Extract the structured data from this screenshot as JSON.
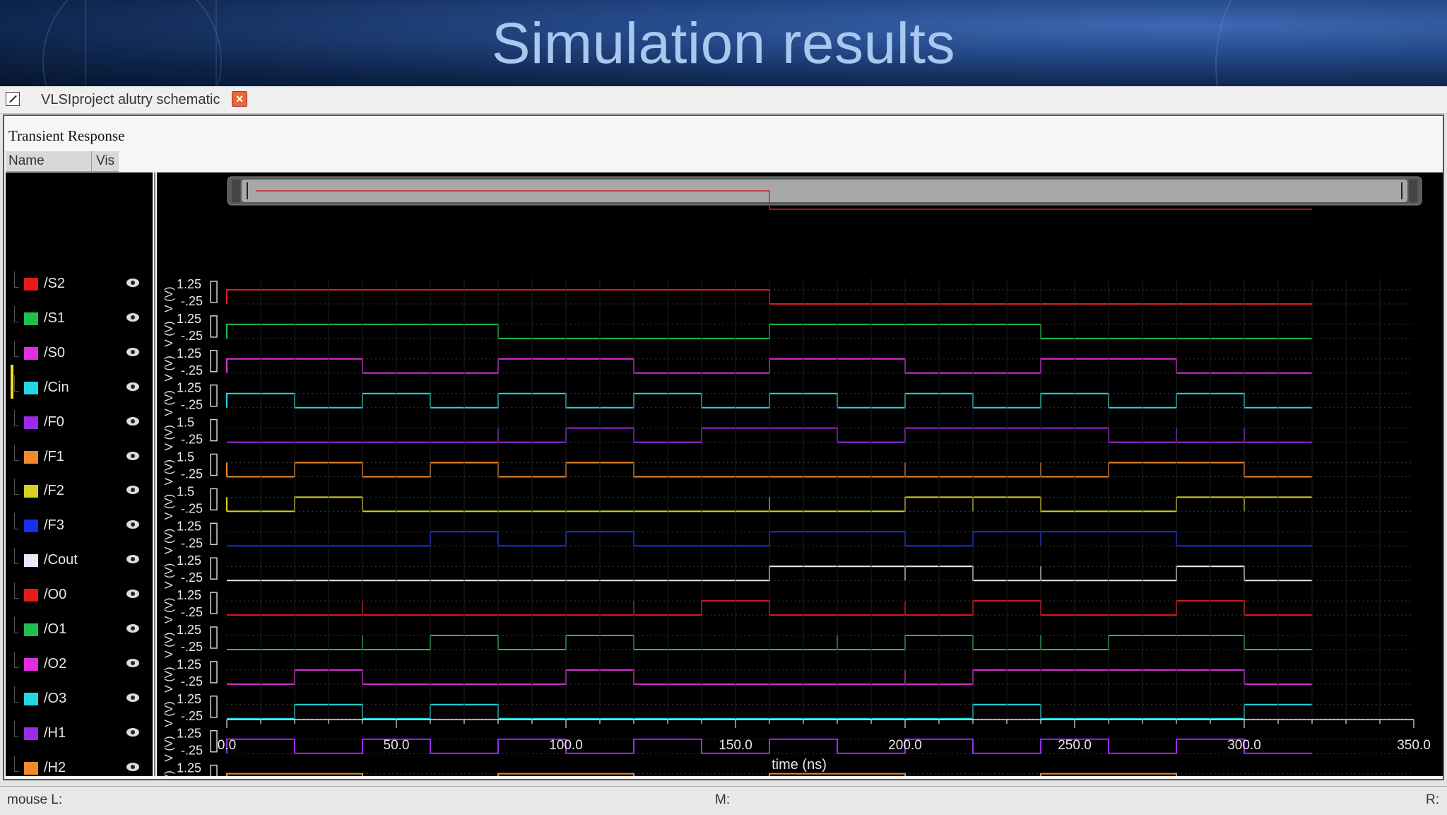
{
  "slide": {
    "title": "Simulation results"
  },
  "tab": {
    "label": "VLSIproject alutry schematic",
    "close_symbol": "×",
    "icon": "schematic-icon"
  },
  "panel": {
    "title": "Transient Response",
    "name_header": "Name",
    "vis_header": "Vis"
  },
  "status": {
    "left": "mouse L:",
    "middle": "M:",
    "right": "R:"
  },
  "chart_data": {
    "type": "line",
    "xlabel": "time (ns)",
    "x_ticks": [
      "0.0",
      "50.0",
      "100.0",
      "150.0",
      "200.0",
      "250.0",
      "300.0",
      "350.0"
    ],
    "xlim": [
      0,
      350
    ],
    "series": [
      {
        "name": "/S2",
        "color": "#e41a1a",
        "y_top": "1.25",
        "y_bot": "-.25",
        "y_unit": "V (V)",
        "edges": [
          0,
          160
        ],
        "init": 1,
        "glitches": []
      },
      {
        "name": "/S1",
        "color": "#1fbf4f",
        "y_top": "1.25",
        "y_bot": "-.25",
        "y_unit": "V (V)",
        "edges": [
          0,
          80,
          160,
          240
        ],
        "init": 1,
        "glitches": []
      },
      {
        "name": "/S0",
        "color": "#e02ee0",
        "y_top": "1.25",
        "y_bot": "-.25",
        "y_unit": "V (V)",
        "edges": [
          0,
          40,
          80,
          120,
          160,
          200,
          240,
          280
        ],
        "init": 1,
        "glitches": []
      },
      {
        "name": "/Cin",
        "color": "#22d8e0",
        "y_top": "1.25",
        "y_bot": "-.25",
        "y_unit": "V (V)",
        "edges": [
          0,
          20,
          40,
          60,
          80,
          100,
          120,
          140,
          160,
          180,
          200,
          220,
          240,
          260,
          280,
          300
        ],
        "init": 1,
        "glitches": []
      },
      {
        "name": "/F0",
        "color": "#9b2be8",
        "y_top": "1.5",
        "y_bot": "-.25",
        "y_unit": "V (V)",
        "edges": [
          100,
          120,
          140,
          180,
          200,
          260
        ],
        "init": 0,
        "glitches": [
          80,
          280,
          300
        ]
      },
      {
        "name": "/F1",
        "color": "#f08a2a",
        "y_top": "1.5",
        "y_bot": "-.25",
        "y_unit": "V (V)",
        "edges": [
          20,
          40,
          60,
          80,
          100,
          120,
          260,
          300
        ],
        "init": 0,
        "glitches": [
          0,
          200,
          240
        ]
      },
      {
        "name": "/F2",
        "color": "#d8d020",
        "y_top": "1.5",
        "y_bot": "-.25",
        "y_unit": "V (V)",
        "edges": [
          20,
          40,
          200,
          240,
          280
        ],
        "init": 0,
        "glitches": [
          0,
          160,
          220,
          300
        ]
      },
      {
        "name": "/F3",
        "color": "#1a2ef0",
        "y_top": "1.25",
        "y_bot": "-.25",
        "y_unit": "V (V)",
        "edges": [
          60,
          80,
          100,
          120,
          160,
          200,
          220,
          280
        ],
        "init": 0,
        "glitches": [
          240
        ]
      },
      {
        "name": "/Cout",
        "color": "#e8e8f8",
        "y_top": "1.25",
        "y_bot": "-.25",
        "y_unit": "V (V)",
        "edges": [
          160,
          220,
          280,
          300
        ],
        "init": 0,
        "glitches": [
          200,
          240
        ]
      },
      {
        "name": "/O0",
        "color": "#e41a1a",
        "y_top": "1.25",
        "y_bot": "-.25",
        "y_unit": "V (V)",
        "edges": [
          140,
          160,
          220,
          240,
          280,
          300
        ],
        "init": 0,
        "glitches": [
          40,
          120,
          200
        ]
      },
      {
        "name": "/O1",
        "color": "#1fbf4f",
        "y_top": "1.25",
        "y_bot": "-.25",
        "y_unit": "V (V)",
        "edges": [
          60,
          80,
          100,
          120,
          200,
          220,
          260,
          300
        ],
        "init": 0,
        "glitches": [
          40,
          180,
          240
        ]
      },
      {
        "name": "/O2",
        "color": "#e02ee0",
        "y_top": "1.25",
        "y_bot": "-.25",
        "y_unit": "V (V)",
        "edges": [
          20,
          40,
          100,
          120,
          220,
          300
        ],
        "init": 0,
        "glitches": [
          200
        ]
      },
      {
        "name": "/O3",
        "color": "#22d8e0",
        "y_top": "1.25",
        "y_bot": "-.25",
        "y_unit": "V (V)",
        "edges": [
          20,
          40,
          60,
          80,
          220,
          240,
          300
        ],
        "init": 0,
        "glitches": []
      },
      {
        "name": "/H1",
        "color": "#9b2be8",
        "y_top": "1.25",
        "y_bot": "-.25",
        "y_unit": "V (V)",
        "edges": [
          0,
          20,
          40,
          60,
          80,
          100,
          120,
          140,
          160,
          180,
          200,
          220,
          240,
          260,
          280,
          300
        ],
        "init": 1,
        "glitches": []
      },
      {
        "name": "/H2",
        "color": "#f08a2a",
        "y_top": "1.25",
        "y_bot": "-.25",
        "y_unit": "V (V)",
        "edges": [
          0,
          40,
          80,
          120,
          160,
          200,
          240,
          280
        ],
        "init": 1,
        "glitches": []
      }
    ],
    "scroll": {
      "window_start": 0,
      "window_end": 320
    }
  }
}
